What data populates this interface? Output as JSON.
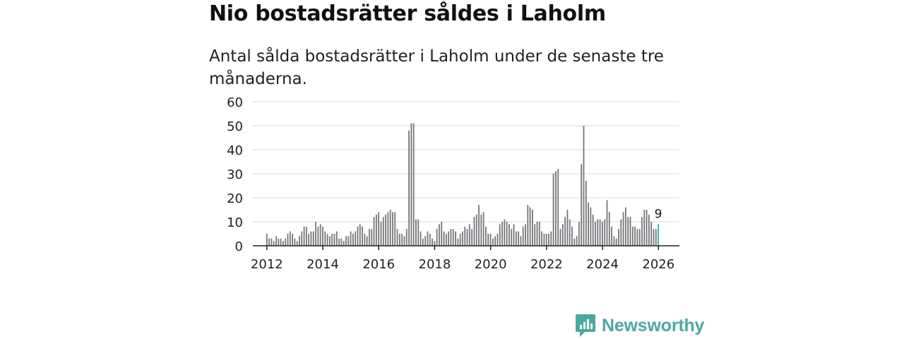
{
  "title": "Nio bostadsrätter såldes i Laholm",
  "subtitle": "Antal sålda bostadsrätter i Laholm under de senaste tre månaderna.",
  "brand": {
    "name": "Newsworthy",
    "color": "#4aa8a1"
  },
  "colors": {
    "bar": "#77777c",
    "highlight": "#2ab0b0",
    "grid": "#d8d8d8",
    "axis": "#222222"
  },
  "chart_data": {
    "type": "bar",
    "title": "Nio bostadsrätter såldes i Laholm",
    "subtitle": "Antal sålda bostadsrätter i Laholm under de senaste tre månaderna.",
    "xlabel": "",
    "ylabel": "",
    "ylim": [
      0,
      60
    ],
    "yticks": [
      0,
      10,
      20,
      30,
      40,
      50,
      60
    ],
    "xlim": [
      2011.5,
      2026.75
    ],
    "xticks": [
      2012,
      2014,
      2016,
      2018,
      2020,
      2022,
      2024,
      2026
    ],
    "x_start": 2012.0,
    "x_step": 0.0833,
    "grid": true,
    "highlight_last": true,
    "last_label": "9",
    "values": [
      5,
      3,
      3,
      2,
      4,
      3,
      3,
      2,
      3,
      5,
      6,
      5,
      3,
      2,
      4,
      6,
      8,
      8,
      5,
      6,
      6,
      10,
      8,
      9,
      8,
      6,
      5,
      4,
      5,
      5,
      6,
      3,
      3,
      2,
      4,
      4,
      6,
      5,
      6,
      8,
      9,
      8,
      5,
      4,
      7,
      7,
      12,
      13,
      14,
      10,
      12,
      13,
      14,
      15,
      14,
      14,
      7,
      5,
      5,
      4,
      7,
      48,
      51,
      51,
      11,
      11,
      6,
      3,
      4,
      6,
      5,
      3,
      2,
      7,
      9,
      10,
      6,
      5,
      6,
      7,
      7,
      6,
      3,
      5,
      6,
      8,
      7,
      9,
      7,
      12,
      13,
      17,
      13,
      14,
      8,
      5,
      5,
      3,
      4,
      5,
      9,
      10,
      11,
      10,
      9,
      7,
      9,
      6,
      6,
      4,
      8,
      9,
      17,
      16,
      15,
      9,
      10,
      10,
      6,
      5,
      5,
      5,
      6,
      30,
      31,
      32,
      7,
      9,
      12,
      15,
      11,
      8,
      3,
      4,
      10,
      34,
      50,
      27,
      18,
      16,
      13,
      10,
      11,
      11,
      10,
      11,
      19,
      14,
      8,
      4,
      3,
      7,
      11,
      14,
      16,
      12,
      12,
      8,
      8,
      7,
      7,
      12,
      15,
      15,
      13,
      10,
      7,
      7,
      9
    ]
  }
}
